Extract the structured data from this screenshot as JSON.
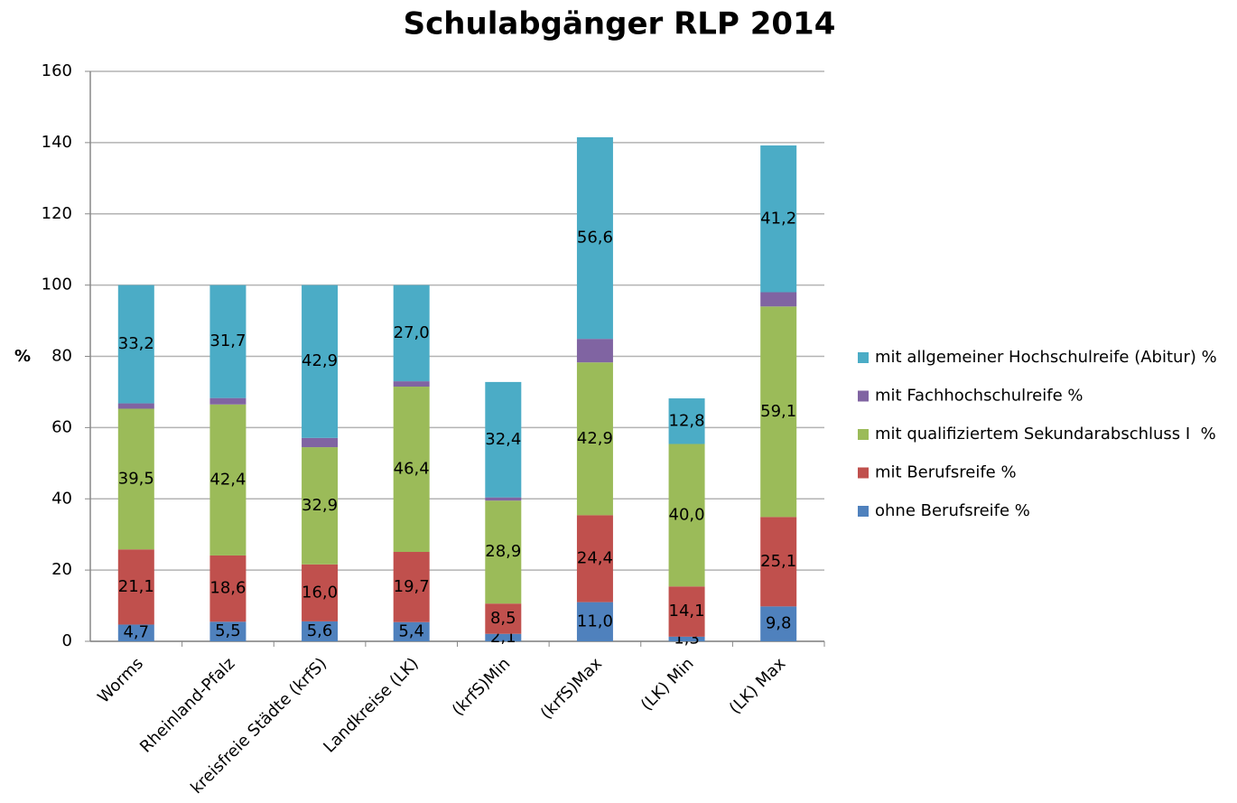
{
  "chart_data": {
    "type": "stacked_bar",
    "title": "Schulabgänger RLP 2014",
    "y_label": "%",
    "categories": [
      "Worms",
      "Rheinland-Pfalz",
      "kreisfreie Städte (krfS)",
      "Landkreise (LK)",
      "(krfS)Min",
      "(krfS)Max",
      "(LK) Min",
      "(LK) Max"
    ],
    "series": [
      {
        "name": "ohne Berufsreife %",
        "color": "#4f81bd",
        "values": [
          4.7,
          5.5,
          5.6,
          5.4,
          2.1,
          11.0,
          1.3,
          9.8
        ],
        "value_labels": [
          "4,7",
          "5,5",
          "5,6",
          "5,4",
          "2,1",
          "11,0",
          "1,3",
          "9,8"
        ]
      },
      {
        "name": "mit Berufsreife %",
        "color": "#c0504d",
        "values": [
          21.1,
          18.6,
          16.0,
          19.7,
          8.5,
          24.4,
          14.1,
          25.1
        ],
        "value_labels": [
          "21,1",
          "18,6",
          "16,0",
          "19,7",
          "8,5",
          "24,4",
          "14,1",
          "25,1"
        ]
      },
      {
        "name": "mit qualifiziertem Sekundarabschluss I  %",
        "color": "#9bbb59",
        "values": [
          39.5,
          42.4,
          32.9,
          46.4,
          28.9,
          42.9,
          40.0,
          59.1
        ],
        "value_labels": [
          "39,5",
          "42,4",
          "32,9",
          "46,4",
          "28,9",
          "42,9",
          "40,0",
          "59,1"
        ]
      },
      {
        "name": "mit Fachhochschulreife %",
        "color": "#8064a2",
        "values": [
          1.5,
          1.8,
          2.6,
          1.5,
          0.9,
          6.6,
          0,
          4.0
        ]
      },
      {
        "name": "mit allgemeiner Hochschulreife (Abitur) %",
        "color": "#4bacc6",
        "values": [
          33.2,
          31.7,
          42.9,
          27.0,
          32.4,
          56.6,
          12.8,
          41.2
        ],
        "value_labels": [
          "33,2",
          "31,7",
          "42,9",
          "27,0",
          "32,4",
          "56,6",
          "12,8",
          "41,2"
        ]
      }
    ],
    "ylim": [
      0,
      160
    ],
    "yticks": [
      0,
      20,
      40,
      60,
      80,
      100,
      120,
      140,
      160
    ],
    "grid": true,
    "legend": "right"
  }
}
